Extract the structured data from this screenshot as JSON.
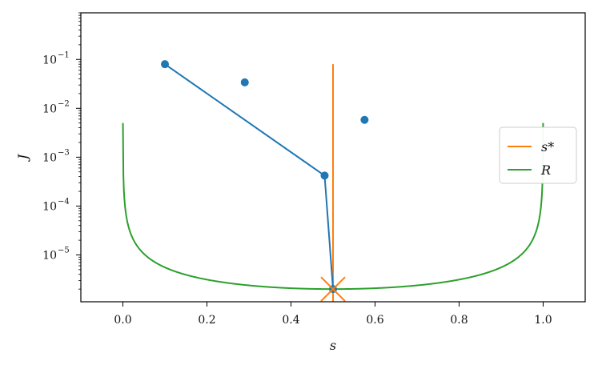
{
  "chart_data": {
    "type": "line",
    "xlabel": "s",
    "ylabel": "J",
    "xlim": [
      -0.1,
      1.1
    ],
    "ylim": [
      1.1e-06,
      0.9
    ],
    "yscale": "log",
    "xticks": [
      0.0,
      0.2,
      0.4,
      0.6,
      0.8,
      1.0
    ],
    "xtick_labels": [
      "0.0",
      "0.2",
      "0.4",
      "0.6",
      "0.8",
      "1.0"
    ],
    "yticks": [
      1e-05,
      0.0001,
      0.001,
      0.01,
      0.1
    ],
    "ytick_labels": [
      {
        "base": "10",
        "exp": "−5"
      },
      {
        "base": "10",
        "exp": "−4"
      },
      {
        "base": "10",
        "exp": "−3"
      },
      {
        "base": "10",
        "exp": "−2"
      },
      {
        "base": "10",
        "exp": "−1"
      }
    ],
    "grid": false,
    "legend_position": "center-right",
    "legend": [
      {
        "label": "s*",
        "color": "#ff7f0e"
      },
      {
        "label": "R",
        "color": "#2ca02c"
      }
    ],
    "series": [
      {
        "kind": "line-with-markers",
        "color": "#1f77b4",
        "x": [
          0.1,
          0.48,
          0.5
        ],
        "y": [
          0.08,
          0.00042,
          2e-06
        ]
      },
      {
        "kind": "points",
        "color": "#1f77b4",
        "x": [
          0.29,
          0.575
        ],
        "y": [
          0.034,
          0.0058
        ]
      },
      {
        "name": "s*",
        "kind": "vertical-line",
        "color": "#ff7f0e",
        "x": 0.5,
        "y_range": [
          1.1e-06,
          0.08
        ]
      },
      {
        "kind": "x-marker",
        "color": "#ff7f0e",
        "x": 0.5,
        "y": 2e-06
      },
      {
        "name": "R",
        "kind": "curve",
        "color": "#2ca02c",
        "formula": "J = 2e-6 / (4 s (1 - s))",
        "x_range": [
          0.0,
          1.0
        ]
      }
    ]
  }
}
